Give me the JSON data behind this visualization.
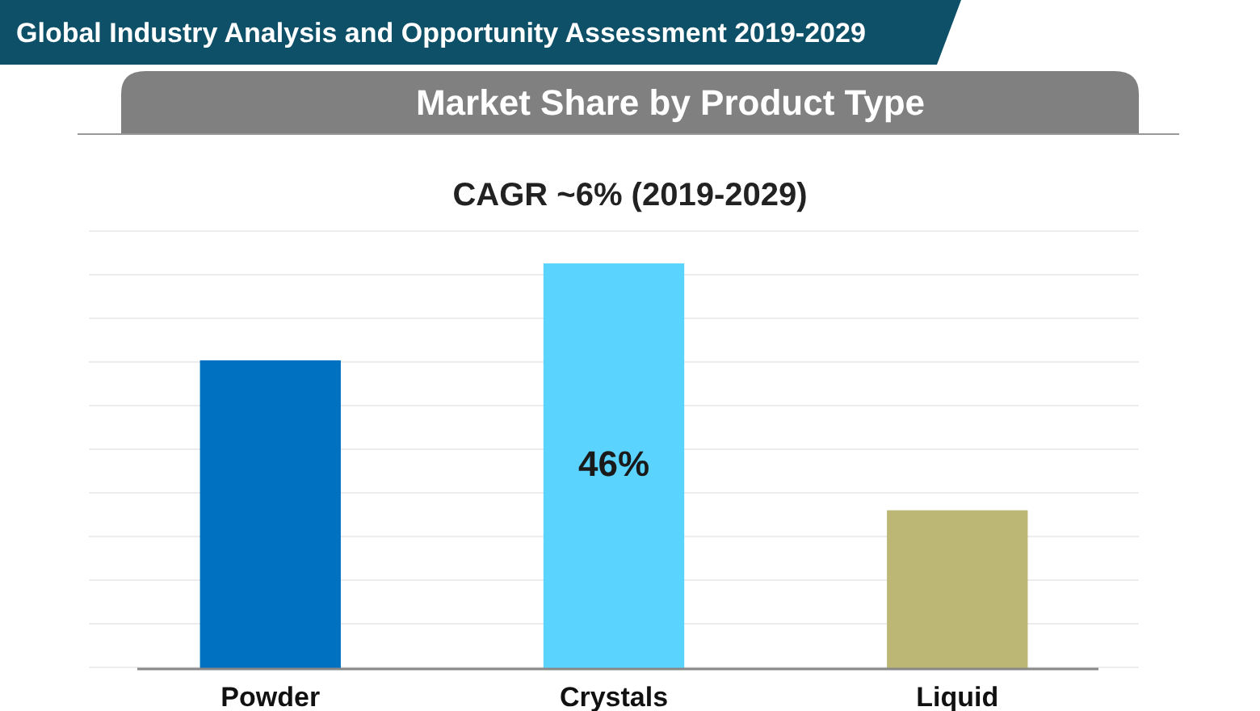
{
  "chart_data": {
    "type": "bar",
    "title": "Market Share by Product Type",
    "subtitle": "CAGR ~6% (2019-2029)",
    "annotations": [
      "Global Industry Analysis and Opportunity Assessment 2019-2029"
    ],
    "categories": [
      "Powder",
      "Crystals",
      "Liquid"
    ],
    "values": [
      35,
      46,
      18
    ],
    "colors": [
      "#0070c0",
      "#5bd3ff",
      "#bdb776"
    ],
    "value_labels": [
      null,
      "46%",
      null
    ],
    "grid": "y"
  }
}
